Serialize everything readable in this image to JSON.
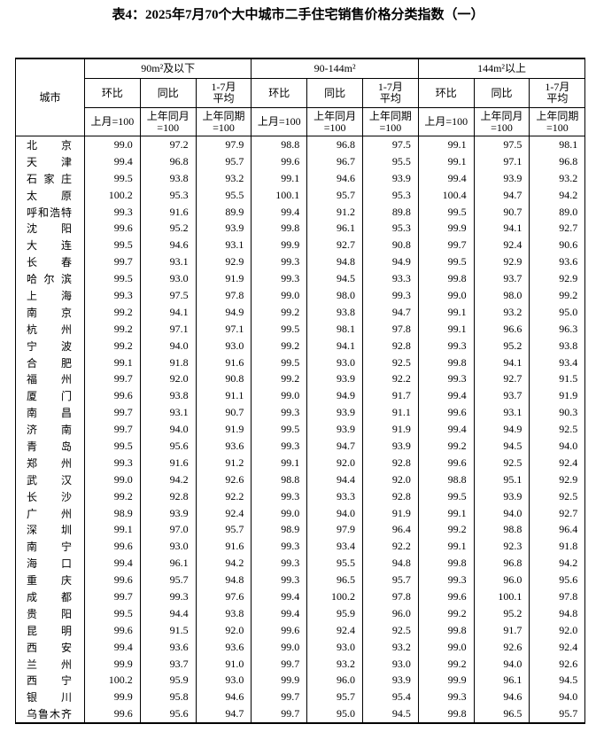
{
  "title": "表4：2025年7月70个大中城市二手住宅销售价格分类指数（一）",
  "table": {
    "city_header": "城市",
    "groups": [
      "90m²及以下",
      "90-144m²",
      "144m²以上"
    ],
    "sub_headers": [
      "环比",
      "同比",
      "1-7月\n平均"
    ],
    "bases": [
      "上月=100",
      "上年同月\n=100",
      "上年同期\n=100"
    ],
    "rows": [
      [
        "北京",
        "99.0",
        "97.2",
        "97.9",
        "98.8",
        "96.8",
        "97.5",
        "99.1",
        "97.5",
        "98.1"
      ],
      [
        "天津",
        "99.4",
        "96.8",
        "95.7",
        "99.6",
        "96.7",
        "95.5",
        "99.1",
        "97.1",
        "96.8"
      ],
      [
        "石家庄",
        "99.5",
        "93.8",
        "93.2",
        "99.1",
        "94.6",
        "93.9",
        "99.4",
        "93.9",
        "93.2"
      ],
      [
        "太原",
        "100.2",
        "95.3",
        "95.5",
        "100.1",
        "95.7",
        "95.3",
        "100.4",
        "94.7",
        "94.2"
      ],
      [
        "呼和浩特",
        "99.3",
        "91.6",
        "89.9",
        "99.4",
        "91.2",
        "89.8",
        "99.5",
        "90.7",
        "89.0"
      ],
      [
        "沈阳",
        "99.6",
        "95.2",
        "93.9",
        "99.8",
        "96.1",
        "95.3",
        "99.9",
        "94.1",
        "92.7"
      ],
      [
        "大连",
        "99.5",
        "94.6",
        "93.1",
        "99.9",
        "92.7",
        "90.8",
        "99.7",
        "92.4",
        "90.6"
      ],
      [
        "长春",
        "99.7",
        "93.1",
        "92.9",
        "99.3",
        "94.8",
        "94.9",
        "99.5",
        "92.9",
        "93.6"
      ],
      [
        "哈尔滨",
        "99.5",
        "93.0",
        "91.9",
        "99.3",
        "94.5",
        "93.3",
        "99.8",
        "93.7",
        "92.9"
      ],
      [
        "上海",
        "99.3",
        "97.5",
        "97.8",
        "99.0",
        "98.0",
        "99.3",
        "99.0",
        "98.0",
        "99.2"
      ],
      [
        "南京",
        "99.2",
        "94.1",
        "94.9",
        "99.2",
        "93.8",
        "94.7",
        "99.1",
        "93.2",
        "95.0"
      ],
      [
        "杭州",
        "99.2",
        "97.1",
        "97.1",
        "99.5",
        "98.1",
        "97.8",
        "99.1",
        "96.6",
        "96.3"
      ],
      [
        "宁波",
        "99.2",
        "94.0",
        "93.0",
        "99.2",
        "94.1",
        "92.8",
        "99.3",
        "95.2",
        "93.8"
      ],
      [
        "合肥",
        "99.1",
        "91.8",
        "91.6",
        "99.5",
        "93.0",
        "92.5",
        "99.8",
        "94.1",
        "93.4"
      ],
      [
        "福州",
        "99.7",
        "92.0",
        "90.8",
        "99.2",
        "93.9",
        "92.2",
        "99.3",
        "92.7",
        "91.5"
      ],
      [
        "厦门",
        "99.6",
        "93.8",
        "91.1",
        "99.0",
        "94.9",
        "91.7",
        "99.4",
        "93.7",
        "91.9"
      ],
      [
        "南昌",
        "99.7",
        "93.1",
        "90.7",
        "99.3",
        "93.9",
        "91.1",
        "99.6",
        "93.1",
        "90.3"
      ],
      [
        "济南",
        "99.7",
        "94.0",
        "91.9",
        "99.5",
        "93.9",
        "91.9",
        "99.4",
        "94.9",
        "92.5"
      ],
      [
        "青岛",
        "99.5",
        "95.6",
        "93.6",
        "99.3",
        "94.7",
        "93.9",
        "99.2",
        "94.5",
        "94.0"
      ],
      [
        "郑州",
        "99.3",
        "91.6",
        "91.2",
        "99.1",
        "92.0",
        "92.8",
        "99.6",
        "92.5",
        "92.4"
      ],
      [
        "武汉",
        "99.0",
        "94.2",
        "92.6",
        "98.8",
        "94.4",
        "92.0",
        "98.8",
        "95.1",
        "92.9"
      ],
      [
        "长沙",
        "99.2",
        "92.8",
        "92.2",
        "99.3",
        "93.3",
        "92.8",
        "99.5",
        "93.9",
        "92.5"
      ],
      [
        "广州",
        "98.9",
        "93.9",
        "92.4",
        "99.0",
        "94.0",
        "91.9",
        "99.1",
        "94.0",
        "92.7"
      ],
      [
        "深圳",
        "99.1",
        "97.0",
        "95.7",
        "98.9",
        "97.9",
        "96.4",
        "99.2",
        "98.8",
        "96.4"
      ],
      [
        "南宁",
        "99.6",
        "93.0",
        "91.6",
        "99.3",
        "93.4",
        "92.2",
        "99.1",
        "92.3",
        "91.8"
      ],
      [
        "海口",
        "99.4",
        "96.1",
        "94.2",
        "99.3",
        "95.5",
        "94.8",
        "99.8",
        "96.8",
        "94.2"
      ],
      [
        "重庆",
        "99.6",
        "95.7",
        "94.8",
        "99.3",
        "96.5",
        "95.7",
        "99.3",
        "96.0",
        "95.6"
      ],
      [
        "成都",
        "99.7",
        "99.3",
        "97.6",
        "99.4",
        "100.2",
        "97.8",
        "99.6",
        "100.1",
        "97.8"
      ],
      [
        "贵阳",
        "99.5",
        "94.4",
        "93.8",
        "99.4",
        "95.9",
        "96.0",
        "99.2",
        "95.2",
        "94.8"
      ],
      [
        "昆明",
        "99.6",
        "91.5",
        "92.0",
        "99.6",
        "92.4",
        "92.5",
        "99.8",
        "91.7",
        "92.0"
      ],
      [
        "西安",
        "99.4",
        "93.6",
        "93.6",
        "99.0",
        "93.0",
        "93.2",
        "99.0",
        "92.6",
        "92.4"
      ],
      [
        "兰州",
        "99.9",
        "93.7",
        "91.0",
        "99.7",
        "93.2",
        "93.0",
        "99.2",
        "94.0",
        "92.6"
      ],
      [
        "西宁",
        "100.2",
        "95.9",
        "93.0",
        "99.9",
        "96.0",
        "93.9",
        "99.9",
        "96.1",
        "94.5"
      ],
      [
        "银川",
        "99.9",
        "95.8",
        "94.6",
        "99.7",
        "95.7",
        "95.4",
        "99.3",
        "94.6",
        "94.0"
      ],
      [
        "乌鲁木齐",
        "99.6",
        "95.6",
        "94.7",
        "99.7",
        "95.0",
        "94.5",
        "99.8",
        "96.5",
        "95.7"
      ]
    ]
  }
}
